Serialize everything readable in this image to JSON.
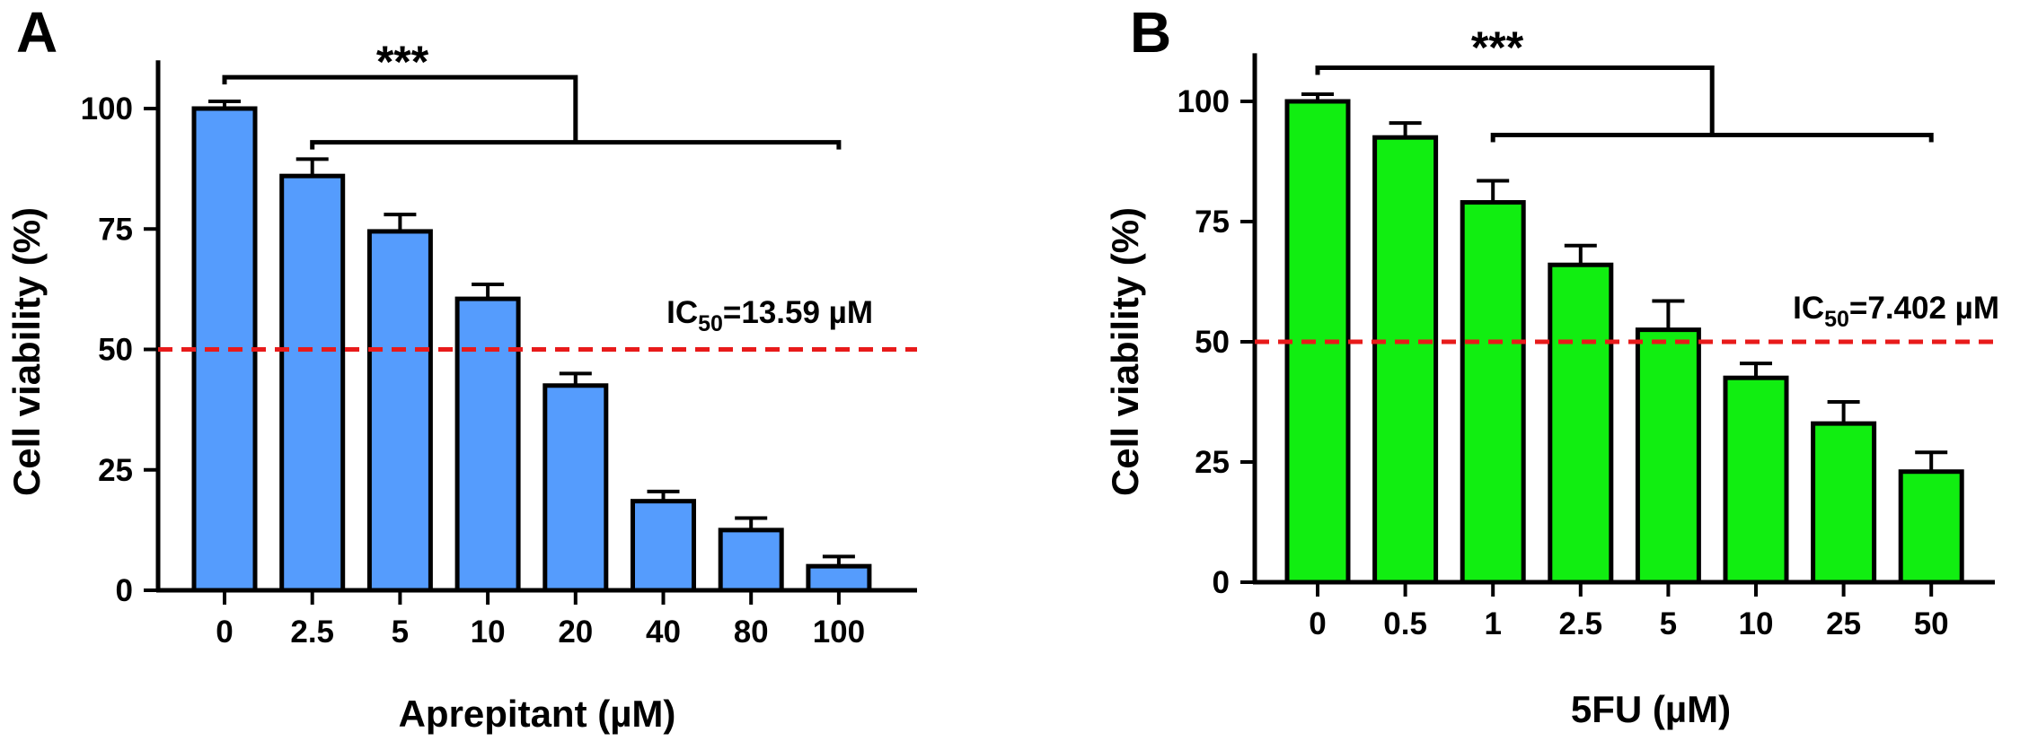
{
  "chart_data": [
    {
      "type": "bar",
      "panel": "A",
      "xlabel": "Aprepitant (µM)",
      "ylabel": "Cell viability (%)",
      "categories": [
        "0",
        "2.5",
        "5",
        "10",
        "20",
        "40",
        "80",
        "100"
      ],
      "values": [
        100,
        86,
        74.5,
        60.5,
        42.5,
        18.5,
        12.5,
        5
      ],
      "errors": [
        1.5,
        3.5,
        3.5,
        3,
        2.5,
        2,
        2.5,
        2
      ],
      "ylim": [
        0,
        110
      ],
      "yticks": [
        0,
        25,
        50,
        75,
        100
      ],
      "bar_color": "#559cfd",
      "threshold": 50,
      "threshold_color": "#e81a1a",
      "ic50": {
        "prefix": "IC",
        "sub": "50",
        "suffix": "=13.59 µM"
      },
      "significance": "***",
      "bracket_top_y": 106.5,
      "bracket_bottom_y": 93,
      "bracket_from": "0",
      "bracket_span": [
        "2.5",
        "100"
      ]
    },
    {
      "type": "bar",
      "panel": "B",
      "xlabel": "5FU (µM)",
      "ylabel": "Cell viability (%)",
      "categories": [
        "0",
        "0.5",
        "1",
        "2.5",
        "5",
        "10",
        "25",
        "50"
      ],
      "values": [
        100,
        92.5,
        79,
        66,
        52.5,
        42.5,
        33,
        23
      ],
      "errors": [
        1.5,
        3,
        4.5,
        4,
        6,
        3,
        4.5,
        4
      ],
      "ylim": [
        0,
        110
      ],
      "yticks": [
        0,
        25,
        50,
        75,
        100
      ],
      "bar_color": "#11ee11",
      "threshold": 50,
      "threshold_color": "#e81a1a",
      "ic50": {
        "prefix": "IC",
        "sub": "50",
        "suffix": "=7.402 µM"
      },
      "significance": "***",
      "bracket_top_y": 107,
      "bracket_bottom_y": 93,
      "bracket_from": "0",
      "bracket_span": [
        "1",
        "50"
      ]
    }
  ]
}
